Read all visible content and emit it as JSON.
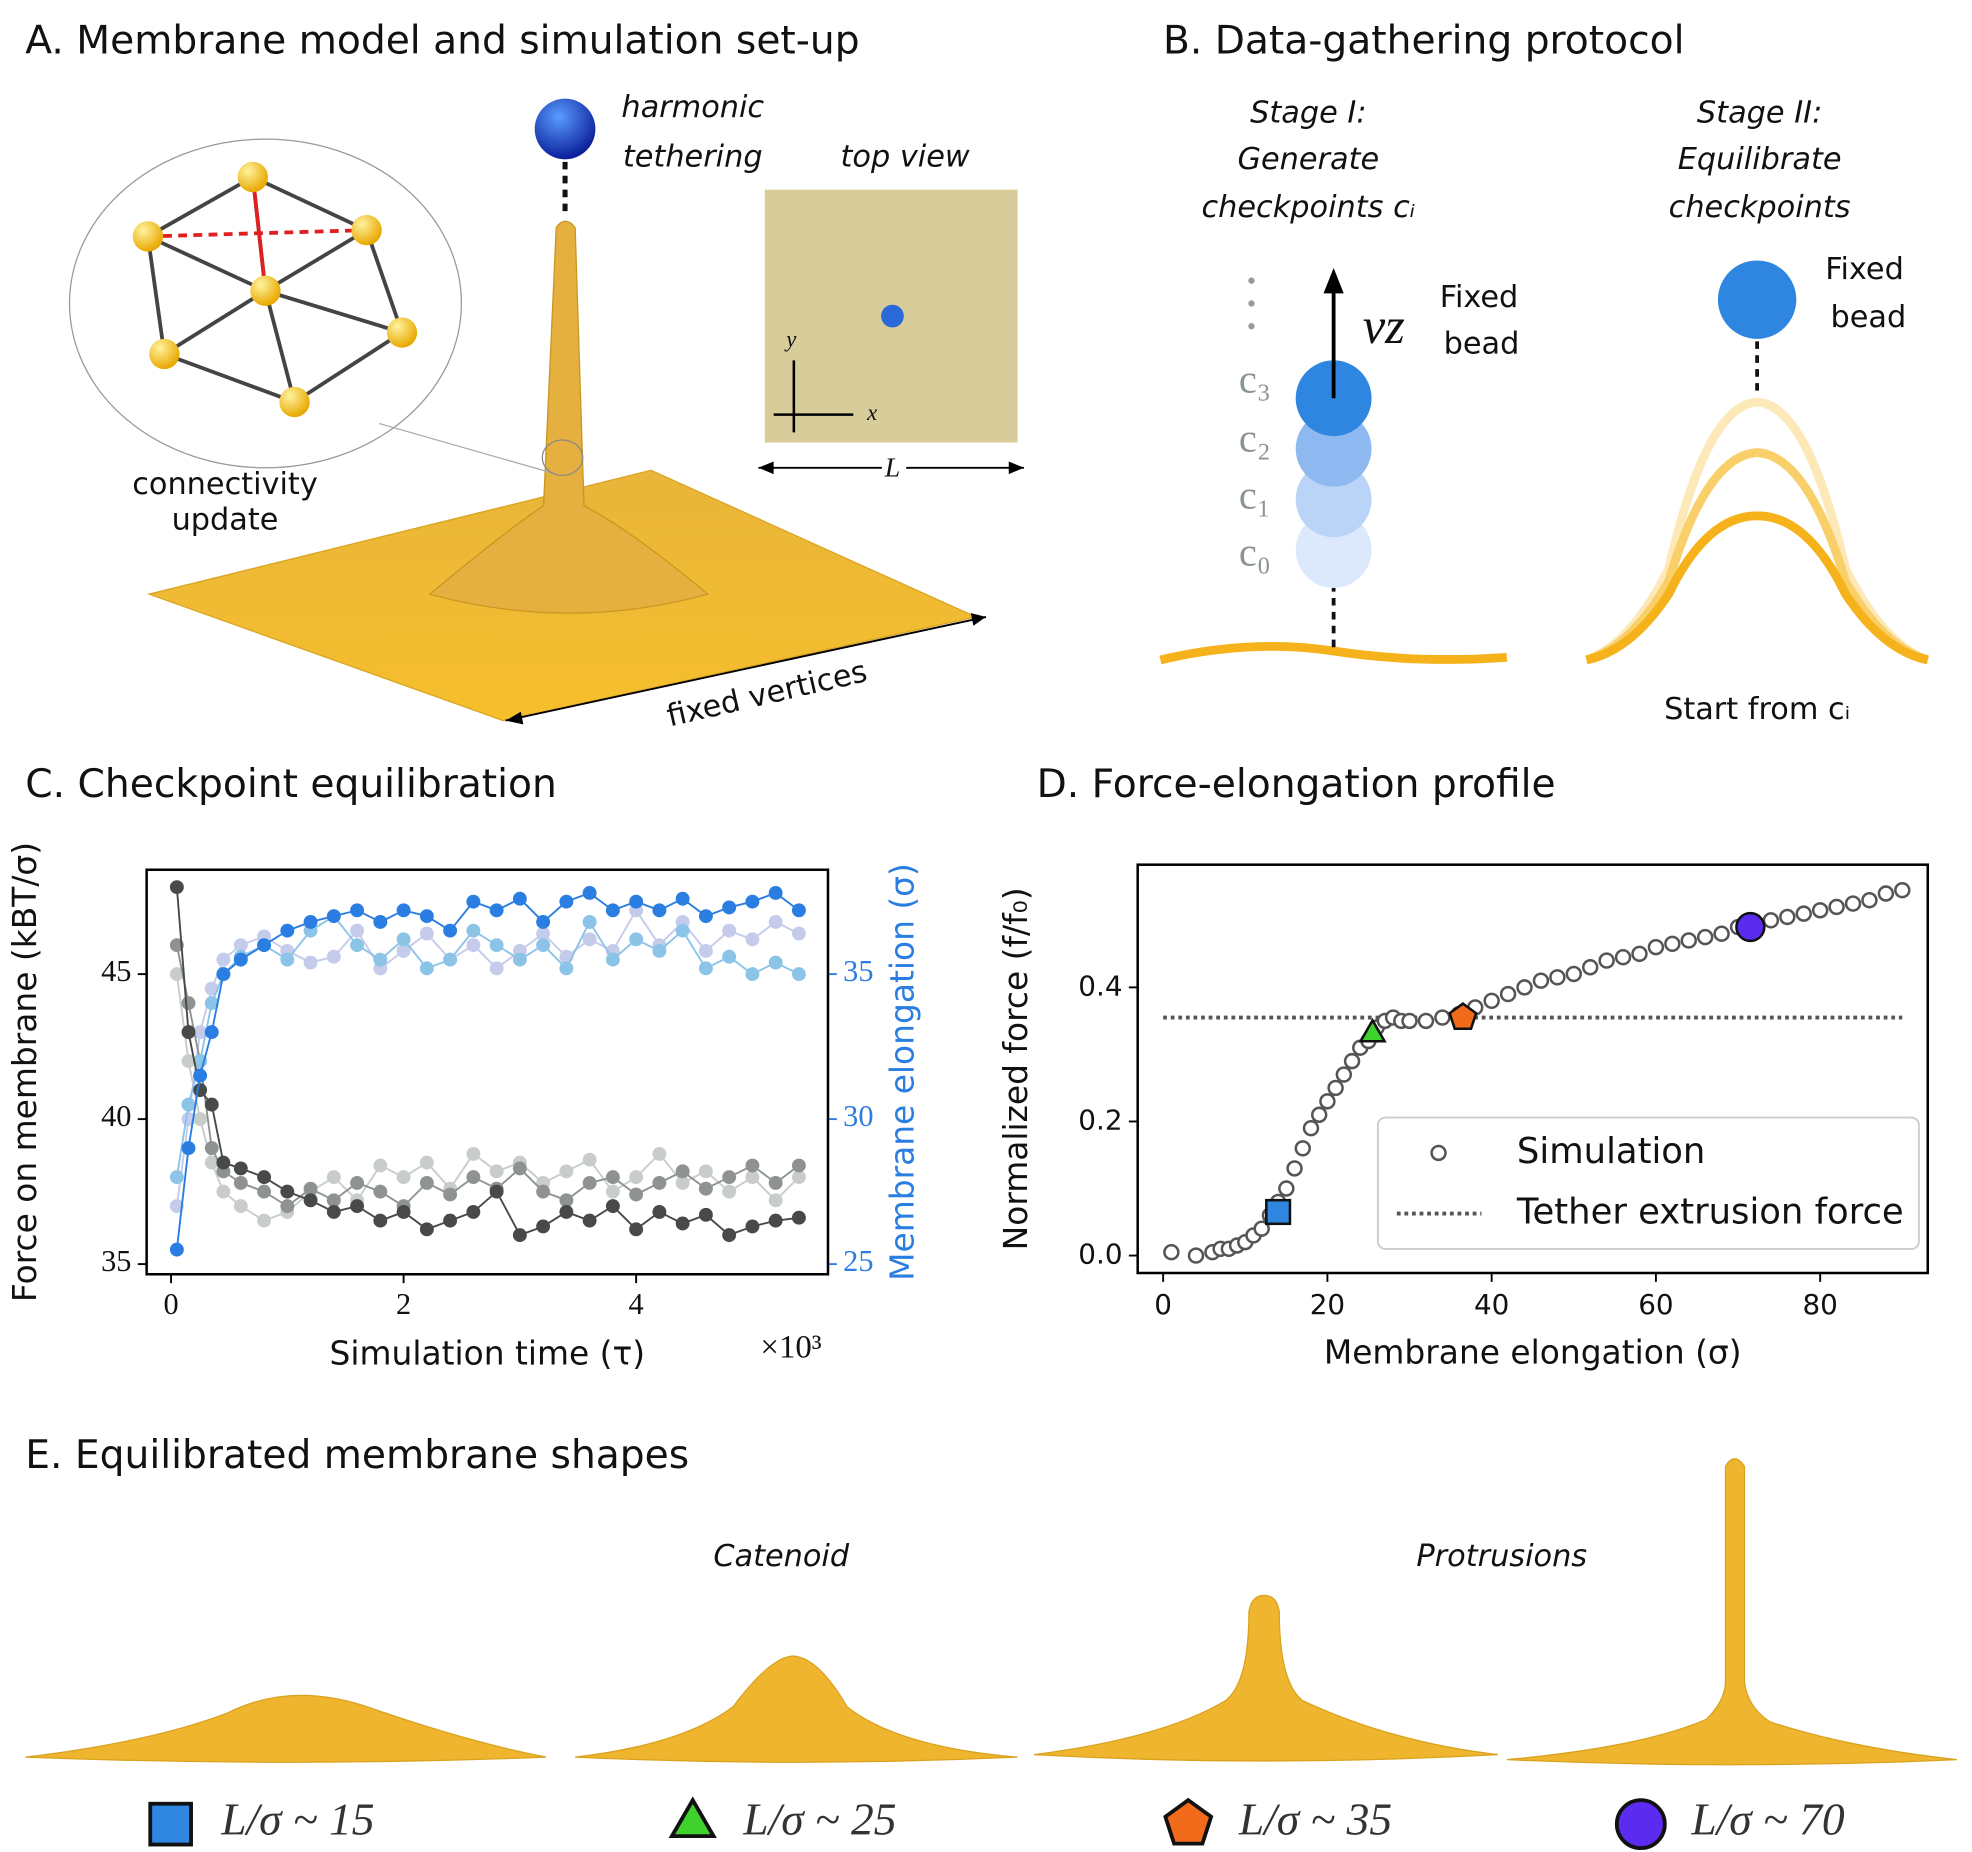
{
  "figure": {
    "panel_a": {
      "title": "A.  Membrane model and simulation set-up",
      "tether": [
        "harmonic",
        "tethering"
      ],
      "top_view": "top view",
      "connectivity": [
        "connectivity",
        "update"
      ],
      "fixed_vertices": "fixed vertices",
      "axis_x": "x",
      "axis_y": "y",
      "length": "L"
    },
    "panel_b": {
      "title": "B.  Data-gathering protocol",
      "stage1": [
        "Stage I:",
        "Generate",
        "checkpoints cᵢ"
      ],
      "velocity": "vz",
      "fixed_bead_1": [
        "Fixed",
        "bead"
      ],
      "checkpoints": [
        "c₃",
        "c₂",
        "c₁",
        "c₀"
      ],
      "stage2": [
        "Stage II:",
        "Equilibrate",
        "checkpoints"
      ],
      "fixed_bead_2": [
        "Fixed",
        "bead"
      ],
      "start": "Start from cᵢ"
    },
    "panel_e": {
      "title": "E.  Equilibrated membrane shapes",
      "catenoid": "Catenoid",
      "protrusions": "Protrusions"
    }
  },
  "chart_data": [
    {
      "type": "line",
      "title": "C.  Checkpoint equilibration",
      "xlabel": "Simulation time (τ)",
      "x_offset_label": "×10³",
      "ylabel": "Force on membrane (kBT/σ)",
      "y2label": "Membrane elongation (σ)",
      "y2color": "#2a7de1",
      "x": [
        0.05,
        0.15,
        0.25,
        0.35,
        0.45,
        0.6,
        0.8,
        1.0,
        1.2,
        1.4,
        1.6,
        1.8,
        2.0,
        2.2,
        2.4,
        2.6,
        2.8,
        3.0,
        3.2,
        3.4,
        3.6,
        3.8,
        4.0,
        4.2,
        4.4,
        4.6,
        4.8,
        5.0,
        5.2,
        5.4
      ],
      "xlim": [
        -0.21,
        5.65
      ],
      "xticks": [
        0,
        2,
        4
      ],
      "ylim": [
        34.65,
        48.6
      ],
      "yticks": [
        35,
        40,
        45
      ],
      "y2lim": [
        24.65,
        38.6
      ],
      "y2ticks": [
        25,
        30,
        35
      ],
      "series": [
        {
          "color": "#c8cdca",
          "values": [
            45,
            42,
            40,
            38.5,
            37.5,
            37,
            36.5,
            36.8,
            37.5,
            38,
            37.2,
            38.4,
            38,
            38.5,
            37.6,
            38.8,
            38.2,
            38.5,
            37.8,
            38.2,
            38.6,
            37.5,
            38,
            38.8,
            37.8,
            38.2,
            37.5,
            38,
            37.2,
            38
          ]
        },
        {
          "color": "#c4cbeb",
          "axis": "y2",
          "values": [
            27,
            30,
            33,
            34.5,
            35.5,
            36,
            36.3,
            35.8,
            35.4,
            35.6,
            36.5,
            35.2,
            35.8,
            36.4,
            35.5,
            36,
            35.2,
            35.8,
            36.4,
            35.6,
            36.2,
            35.8,
            37.2,
            36,
            36.8,
            35.8,
            36.5,
            36.2,
            36.8,
            36.4
          ]
        },
        {
          "color": "#8e9391",
          "values": [
            46,
            44,
            42,
            39,
            38.2,
            37.8,
            37.5,
            37,
            37.6,
            37.2,
            37.8,
            37.5,
            37,
            37.8,
            37.4,
            38,
            37.6,
            38.3,
            37.5,
            37.2,
            37.8,
            38,
            37.4,
            37.8,
            38.2,
            37.6,
            38,
            38.4,
            37.8,
            38.4
          ]
        },
        {
          "color": "#8cc4e8",
          "axis": "y2",
          "values": [
            28,
            30.5,
            32,
            34,
            35,
            35.6,
            36,
            35.5,
            36.5,
            37,
            36,
            35.5,
            36.2,
            35.2,
            35.5,
            36.5,
            36,
            35.5,
            36,
            35.2,
            36.8,
            35.5,
            36.2,
            35.8,
            36.5,
            35.2,
            35.6,
            35,
            35.4,
            35
          ]
        },
        {
          "color": "#474a49",
          "values": [
            48,
            43,
            41,
            40.5,
            38.5,
            38.3,
            38,
            37.5,
            37.2,
            36.8,
            37,
            36.5,
            36.8,
            36.2,
            36.5,
            36.8,
            37.5,
            36,
            36.3,
            36.8,
            36.5,
            37,
            36.2,
            36.8,
            36.4,
            36.7,
            36,
            36.3,
            36.5,
            36.6
          ]
        },
        {
          "color": "#2a7de1",
          "axis": "y2",
          "values": [
            25.5,
            29,
            31.5,
            33,
            35,
            35.5,
            36,
            36.5,
            36.8,
            37,
            37.2,
            36.8,
            37.2,
            37,
            36.5,
            37.5,
            37.2,
            37.6,
            36.8,
            37.5,
            37.8,
            37.2,
            37.5,
            37.2,
            37.6,
            37,
            37.3,
            37.5,
            37.8,
            37.2
          ]
        }
      ]
    },
    {
      "type": "scatter",
      "title": "D.  Force-elongation profile",
      "xlabel": "Membrane elongation (σ)",
      "ylabel": "Normalized force (f/f₀)",
      "xlim": [
        -3.1,
        93.1
      ],
      "xticks": [
        0,
        20,
        40,
        60,
        80
      ],
      "ylim": [
        -0.026,
        0.583
      ],
      "yticks": [
        {
          "value": 0,
          "label": "0.0"
        },
        {
          "value": 0.2,
          "label": "0.2"
        },
        {
          "value": 0.4,
          "label": "0.4"
        }
      ],
      "series": [
        {
          "name": "Simulation",
          "color": "#555555",
          "x": [
            1,
            4,
            6,
            7,
            8,
            9,
            10,
            11,
            12,
            13,
            14,
            15,
            16,
            17,
            18,
            19,
            20,
            21,
            22,
            23,
            24,
            25,
            26,
            27,
            28,
            29,
            30,
            32,
            34,
            36,
            38,
            40,
            42,
            44,
            46,
            48,
            50,
            52,
            54,
            56,
            58,
            60,
            62,
            64,
            66,
            68,
            70,
            72,
            74,
            76,
            78,
            80,
            82,
            84,
            86,
            88,
            90
          ],
          "values": [
            0.005,
            0,
            0.005,
            0.01,
            0.01,
            0.015,
            0.02,
            0.03,
            0.04,
            0.06,
            0.08,
            0.1,
            0.13,
            0.16,
            0.19,
            0.21,
            0.23,
            0.25,
            0.27,
            0.29,
            0.31,
            0.32,
            0.34,
            0.35,
            0.355,
            0.35,
            0.35,
            0.35,
            0.355,
            0.36,
            0.37,
            0.38,
            0.39,
            0.4,
            0.41,
            0.415,
            0.42,
            0.43,
            0.44,
            0.445,
            0.45,
            0.46,
            0.465,
            0.47,
            0.475,
            0.48,
            0.49,
            0.495,
            0.5,
            0.505,
            0.51,
            0.515,
            0.52,
            0.525,
            0.53,
            0.54,
            0.545
          ]
        }
      ],
      "hline": {
        "name": "Tether extrusion force",
        "value": 0.355,
        "x": [
          0,
          90
        ],
        "color": "#555555"
      },
      "highlights": [
        {
          "marker": "square",
          "color": "#2f86e0",
          "x": 14,
          "y": 0.065,
          "label": "L/σ ~ 15"
        },
        {
          "marker": "triangle",
          "color": "#3fd12c",
          "x": 25.5,
          "y": 0.33,
          "label": "L/σ ~ 25"
        },
        {
          "marker": "pentagon",
          "color": "#f26b1a",
          "x": 36.5,
          "y": 0.355,
          "label": "L/σ ~ 35"
        },
        {
          "marker": "circle",
          "color": "#5b2cf0",
          "x": 71.5,
          "y": 0.49,
          "label": "L/σ ~ 70"
        }
      ]
    }
  ]
}
